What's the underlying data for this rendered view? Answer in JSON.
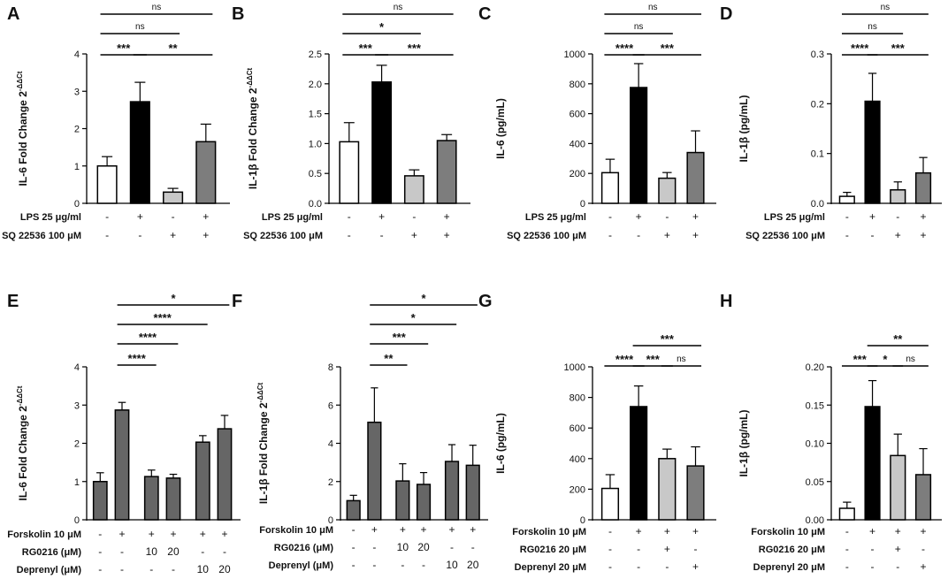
{
  "figure": {
    "panel_count": 8
  },
  "colors": {
    "white": "#ffffff",
    "black": "#000000",
    "light_gray": "#c8c8c8",
    "mid_gray": "#7d7d7d",
    "dark_gray": "#666666"
  },
  "chart_data": [
    {
      "type": "bar",
      "panel": "A",
      "ylabel": "IL-6 Fold Change 2-ΔΔCt",
      "ylabel_main": "IL-6 Fold Change 2",
      "ylabel_sup": "-ΔΔCt",
      "ylim": [
        0,
        4
      ],
      "yticks": [
        "0",
        "1",
        "2",
        "3",
        "4"
      ],
      "bars": [
        {
          "value": 1.0,
          "error": 0.25,
          "fill": "white"
        },
        {
          "value": 2.72,
          "error": 0.52,
          "fill": "black"
        },
        {
          "value": 0.3,
          "error": 0.1,
          "fill": "light_gray"
        },
        {
          "value": 1.65,
          "error": 0.47,
          "fill": "mid_gray"
        }
      ],
      "conditions": [
        {
          "label": "LPS 25 μg/ml",
          "signs": [
            "-",
            "+",
            "-",
            "+"
          ]
        },
        {
          "label": "SQ 22536 100 μM",
          "signs": [
            "-",
            "-",
            "+",
            "+"
          ]
        }
      ],
      "comparisons": [
        {
          "from": 0,
          "to": 1,
          "label": "***"
        },
        {
          "from": 1,
          "to": 3,
          "label": "**"
        },
        {
          "from": 0,
          "to": 2,
          "label": "ns"
        },
        {
          "from": 0,
          "to": 3,
          "label": "ns"
        }
      ]
    },
    {
      "type": "bar",
      "panel": "B",
      "ylabel": "IL-1β Fold Change 2-ΔΔCt",
      "ylabel_main": "IL-1β Fold Change 2",
      "ylabel_sup": "-ΔΔCt",
      "ylim": [
        0,
        2.5
      ],
      "yticks": [
        "0.0",
        "0.5",
        "1.0",
        "1.5",
        "2.0",
        "2.5"
      ],
      "bars": [
        {
          "value": 1.03,
          "error": 0.32,
          "fill": "white"
        },
        {
          "value": 2.03,
          "error": 0.28,
          "fill": "black"
        },
        {
          "value": 0.46,
          "error": 0.1,
          "fill": "light_gray"
        },
        {
          "value": 1.05,
          "error": 0.1,
          "fill": "mid_gray"
        }
      ],
      "conditions": [
        {
          "label": "LPS 25 μg/ml",
          "signs": [
            "-",
            "+",
            "-",
            "+"
          ]
        },
        {
          "label": "SQ 22536 100 μM",
          "signs": [
            "-",
            "-",
            "+",
            "+"
          ]
        }
      ],
      "comparisons": [
        {
          "from": 0,
          "to": 1,
          "label": "***"
        },
        {
          "from": 1,
          "to": 3,
          "label": "***"
        },
        {
          "from": 0,
          "to": 2,
          "label": "*"
        },
        {
          "from": 0,
          "to": 3,
          "label": "ns"
        }
      ]
    },
    {
      "type": "bar",
      "panel": "C",
      "ylabel": "IL-6 (pg/mL)",
      "ylabel_main": "IL-6 (pg/mL)",
      "ylabel_sup": "",
      "ylim": [
        0,
        1000
      ],
      "yticks": [
        "0",
        "200",
        "400",
        "600",
        "800",
        "1000"
      ],
      "bars": [
        {
          "value": 205,
          "error": 90,
          "fill": "white"
        },
        {
          "value": 775,
          "error": 160,
          "fill": "black"
        },
        {
          "value": 168,
          "error": 38,
          "fill": "light_gray"
        },
        {
          "value": 340,
          "error": 145,
          "fill": "mid_gray"
        }
      ],
      "conditions": [
        {
          "label": "LPS 25 μg/ml",
          "signs": [
            "-",
            "+",
            "-",
            "+"
          ]
        },
        {
          "label": "SQ 22536 100 μM",
          "signs": [
            "-",
            "-",
            "+",
            "+"
          ]
        }
      ],
      "comparisons": [
        {
          "from": 0,
          "to": 1,
          "label": "****"
        },
        {
          "from": 1,
          "to": 3,
          "label": "***"
        },
        {
          "from": 0,
          "to": 2,
          "label": "ns"
        },
        {
          "from": 0,
          "to": 3,
          "label": "ns"
        }
      ]
    },
    {
      "type": "bar",
      "panel": "D",
      "ylabel": "IL-1β (pg/mL)",
      "ylabel_main": "IL-1β (pg/mL)",
      "ylabel_sup": "",
      "ylim": [
        0,
        0.3
      ],
      "yticks": [
        "0.0",
        "0.1",
        "0.2",
        "0.3"
      ],
      "bars": [
        {
          "value": 0.014,
          "error": 0.008,
          "fill": "white"
        },
        {
          "value": 0.205,
          "error": 0.056,
          "fill": "black"
        },
        {
          "value": 0.027,
          "error": 0.016,
          "fill": "light_gray"
        },
        {
          "value": 0.061,
          "error": 0.031,
          "fill": "mid_gray"
        }
      ],
      "conditions": [
        {
          "label": "LPS 25 μg/ml",
          "signs": [
            "-",
            "+",
            "-",
            "+"
          ]
        },
        {
          "label": "SQ 22536 100 μM",
          "signs": [
            "-",
            "-",
            "+",
            "+"
          ]
        }
      ],
      "comparisons": [
        {
          "from": 0,
          "to": 1,
          "label": "****"
        },
        {
          "from": 1,
          "to": 3,
          "label": "***"
        },
        {
          "from": 0,
          "to": 2,
          "label": "ns"
        },
        {
          "from": 0,
          "to": 3,
          "label": "ns"
        }
      ]
    },
    {
      "type": "bar",
      "panel": "E",
      "ylabel": "IL-6 Fold Change 2-ΔΔCt",
      "ylabel_main": "IL-6 Fold Change 2",
      "ylabel_sup": "-ΔΔCt",
      "ylim": [
        0,
        4
      ],
      "yticks": [
        "0",
        "1",
        "2",
        "3",
        "4"
      ],
      "bar_slots": [
        0,
        1,
        2.35,
        3.35,
        4.7,
        5.7
      ],
      "slot_count": 6.7,
      "bars": [
        {
          "value": 1.0,
          "error": 0.23,
          "fill": "dark_gray"
        },
        {
          "value": 2.87,
          "error": 0.2,
          "fill": "dark_gray"
        },
        {
          "value": 1.13,
          "error": 0.17,
          "fill": "dark_gray"
        },
        {
          "value": 1.09,
          "error": 0.1,
          "fill": "dark_gray"
        },
        {
          "value": 2.03,
          "error": 0.17,
          "fill": "dark_gray"
        },
        {
          "value": 2.38,
          "error": 0.35,
          "fill": "dark_gray"
        }
      ],
      "conditions": [
        {
          "label": "Forskolin 10 μM",
          "signs": [
            "-",
            "+",
            "+",
            "+",
            "+",
            "+"
          ]
        },
        {
          "label": "RG0216 (μM)",
          "signs": [
            "-",
            "-",
            "10",
            "20",
            "-",
            "-"
          ]
        },
        {
          "label": "Deprenyl (μM)",
          "signs": [
            "-",
            "-",
            "-",
            "-",
            "10",
            "20"
          ]
        }
      ],
      "comparisons": [
        {
          "from": 1,
          "to": 2,
          "label": "****"
        },
        {
          "from": 1,
          "to": 3,
          "label": "****"
        },
        {
          "from": 1,
          "to": 4,
          "label": "****"
        },
        {
          "from": 1,
          "to": 5,
          "label": "*"
        }
      ]
    },
    {
      "type": "bar",
      "panel": "F",
      "ylabel": "IL-1β Fold Change 2-ΔΔCt",
      "ylabel_main": "IL-1β Fold Change 2",
      "ylabel_sup": "-ΔΔCt",
      "ylim": [
        0,
        8
      ],
      "yticks": [
        "0",
        "2",
        "4",
        "6",
        "8"
      ],
      "bar_slots": [
        0,
        1,
        2.35,
        3.35,
        4.7,
        5.7
      ],
      "slot_count": 6.7,
      "bars": [
        {
          "value": 1.0,
          "error": 0.28,
          "fill": "dark_gray"
        },
        {
          "value": 5.1,
          "error": 1.8,
          "fill": "dark_gray"
        },
        {
          "value": 2.03,
          "error": 0.9,
          "fill": "dark_gray"
        },
        {
          "value": 1.85,
          "error": 0.62,
          "fill": "dark_gray"
        },
        {
          "value": 3.05,
          "error": 0.88,
          "fill": "dark_gray"
        },
        {
          "value": 2.85,
          "error": 1.05,
          "fill": "dark_gray"
        }
      ],
      "conditions": [
        {
          "label": "Forskolin 10 μM",
          "signs": [
            "-",
            "+",
            "+",
            "+",
            "+",
            "+"
          ]
        },
        {
          "label": "RG0216 (μM)",
          "signs": [
            "-",
            "-",
            "10",
            "20",
            "-",
            "-"
          ]
        },
        {
          "label": "Deprenyl (μM)",
          "signs": [
            "-",
            "-",
            "-",
            "-",
            "10",
            "20"
          ]
        }
      ],
      "comparisons": [
        {
          "from": 1,
          "to": 2,
          "label": "**"
        },
        {
          "from": 1,
          "to": 3,
          "label": "***"
        },
        {
          "from": 1,
          "to": 4,
          "label": "*"
        },
        {
          "from": 1,
          "to": 5,
          "label": "*"
        }
      ]
    },
    {
      "type": "bar",
      "panel": "G",
      "ylabel": "IL-6 (pg/mL)",
      "ylabel_main": "IL-6 (pg/mL)",
      "ylabel_sup": "",
      "ylim": [
        0,
        1000
      ],
      "yticks": [
        "0",
        "200",
        "400",
        "600",
        "800",
        "1000"
      ],
      "bars": [
        {
          "value": 205,
          "error": 90,
          "fill": "white"
        },
        {
          "value": 740,
          "error": 135,
          "fill": "black"
        },
        {
          "value": 400,
          "error": 62,
          "fill": "light_gray"
        },
        {
          "value": 352,
          "error": 125,
          "fill": "mid_gray"
        }
      ],
      "conditions": [
        {
          "label": "Forskolin 10 μM",
          "signs": [
            "-",
            "+",
            "+",
            "+"
          ]
        },
        {
          "label": "RG0216 20 μM",
          "signs": [
            "-",
            "-",
            "+",
            "-"
          ]
        },
        {
          "label": "Deprenyl 20 μM",
          "signs": [
            "-",
            "-",
            "-",
            "+"
          ]
        }
      ],
      "comparisons": [
        {
          "from": 0,
          "to": 1,
          "label": "****"
        },
        {
          "from": 1,
          "to": 2,
          "label": "***"
        },
        {
          "from": 2,
          "to": 3,
          "label": "ns"
        },
        {
          "from": 1,
          "to": 3,
          "label": "***"
        }
      ]
    },
    {
      "type": "bar",
      "panel": "H",
      "ylabel": "IL-1β (pg/mL)",
      "ylabel_main": "IL-1β (pg/mL)",
      "ylabel_sup": "",
      "ylim": [
        0,
        0.2
      ],
      "yticks": [
        "0.00",
        "0.05",
        "0.10",
        "0.15",
        "0.20"
      ],
      "bars": [
        {
          "value": 0.015,
          "error": 0.008,
          "fill": "white"
        },
        {
          "value": 0.148,
          "error": 0.034,
          "fill": "black"
        },
        {
          "value": 0.084,
          "error": 0.028,
          "fill": "light_gray"
        },
        {
          "value": 0.059,
          "error": 0.034,
          "fill": "mid_gray"
        }
      ],
      "conditions": [
        {
          "label": "Forskolin 10 μM",
          "signs": [
            "-",
            "+",
            "+",
            "+"
          ]
        },
        {
          "label": "RG0216 20 μM",
          "signs": [
            "-",
            "-",
            "+",
            "-"
          ]
        },
        {
          "label": "Deprenyl 20 μM",
          "signs": [
            "-",
            "-",
            "-",
            "+"
          ]
        }
      ],
      "comparisons": [
        {
          "from": 0,
          "to": 1,
          "label": "***"
        },
        {
          "from": 1,
          "to": 2,
          "label": "*"
        },
        {
          "from": 2,
          "to": 3,
          "label": "ns"
        },
        {
          "from": 1,
          "to": 3,
          "label": "**"
        }
      ]
    }
  ]
}
